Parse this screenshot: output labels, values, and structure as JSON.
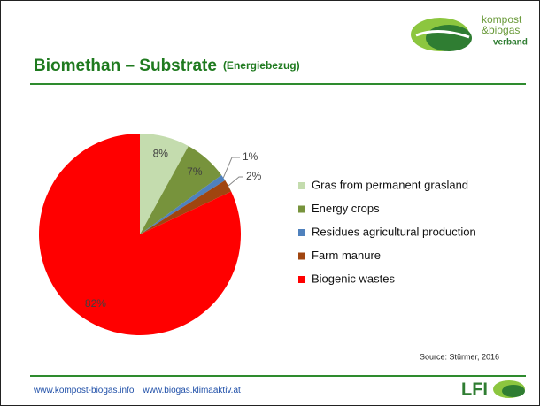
{
  "logo": {
    "line1": "kompost",
    "line2": "&biogas",
    "line3": "verband"
  },
  "chart_data": {
    "type": "pie",
    "title": "Biomethan – Substrate",
    "subtitle": "(Energiebezug)",
    "categories": [
      "Gras from permanent grasland",
      "Energy crops",
      "Residues agricultural production",
      "Farm manure",
      "Biogenic wastes"
    ],
    "values": [
      8,
      7,
      1,
      2,
      82
    ],
    "value_labels": [
      "8%",
      "7%",
      "1%",
      "2%",
      "82%"
    ],
    "colors": [
      "#c4dcae",
      "#77933c",
      "#4f81bd",
      "#a0450f",
      "#ff0000"
    ],
    "legend": "right"
  },
  "source": "Source: Stürmer, 2016",
  "footer": {
    "link1": "www.kompost-biogas.info",
    "link2": "www.biogas.klimaaktiv.at",
    "logo": "LFI"
  }
}
